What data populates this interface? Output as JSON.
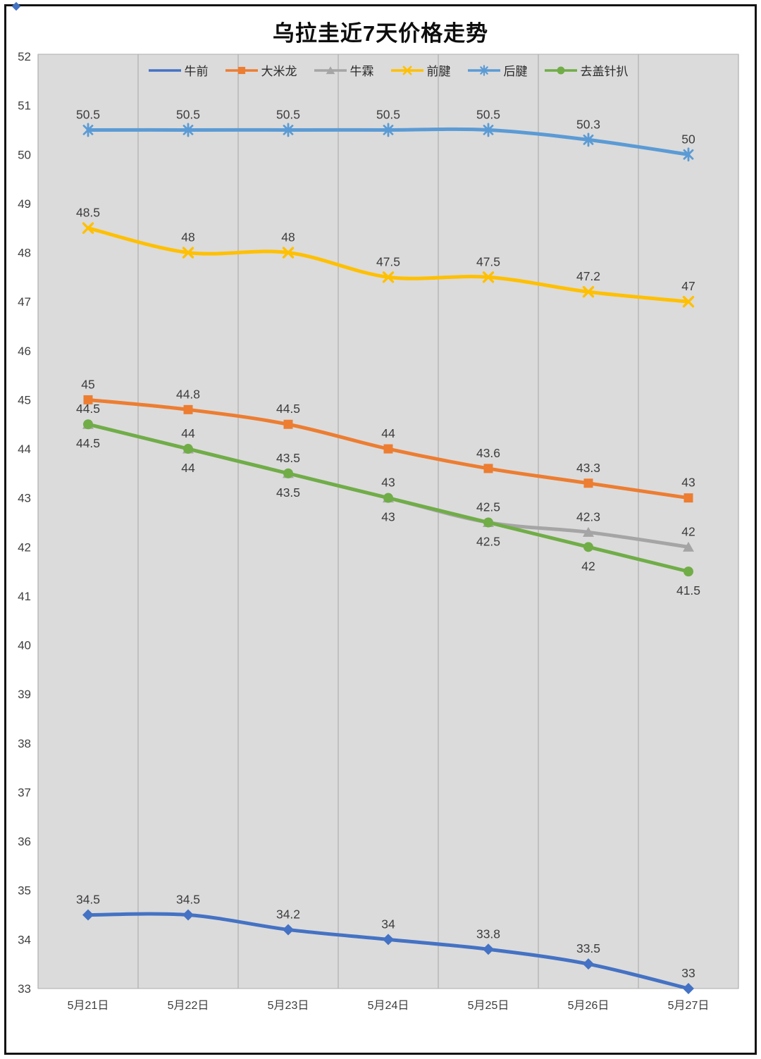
{
  "title": "乌拉圭近7天价格走势",
  "chart_data": {
    "type": "line",
    "title": "乌拉圭近7天价格走势",
    "categories": [
      "5月21日",
      "5月22日",
      "5月23日",
      "5月24日",
      "5月25日",
      "5月26日",
      "5月27日"
    ],
    "series": [
      {
        "id": "niu-qian",
        "name": "牛前",
        "color": "#4472C4",
        "marker": "diamond",
        "label_side": "above",
        "values": [
          34.5,
          34.5,
          34.2,
          34,
          33.8,
          33.5,
          33
        ]
      },
      {
        "id": "da-mi-long",
        "name": "大米龙",
        "color": "#ED7D31",
        "marker": "square",
        "label_side": "above",
        "values": [
          45,
          44.8,
          44.5,
          44,
          43.6,
          43.3,
          43
        ]
      },
      {
        "id": "niu-lin",
        "name": "牛霖",
        "color": "#A5A5A5",
        "marker": "triangle",
        "label_side": "above",
        "values": [
          44.5,
          44,
          43.5,
          43,
          42.5,
          42.3,
          42
        ]
      },
      {
        "id": "qian-jian",
        "name": "前腱",
        "color": "#FFC000",
        "marker": "x",
        "label_side": "above",
        "values": [
          48.5,
          48,
          48,
          47.5,
          47.5,
          47.2,
          47
        ]
      },
      {
        "id": "hou-jian",
        "name": "后腱",
        "color": "#5B9BD5",
        "marker": "asterisk",
        "label_side": "above",
        "values": [
          50.5,
          50.5,
          50.5,
          50.5,
          50.5,
          50.3,
          50
        ]
      },
      {
        "id": "qu-gai-zhen-ba",
        "name": "去盖针扒",
        "color": "#70AD47",
        "marker": "circle",
        "label_side": "below",
        "values": [
          44.5,
          44,
          43.5,
          43,
          42.5,
          42,
          41.5
        ]
      }
    ],
    "ylim": [
      33,
      52
    ],
    "y_tick_step": 1,
    "xlabel": "",
    "ylabel": "",
    "grid": "vertical",
    "legend_position": "top",
    "plot_bg_color": "#dbdbdb",
    "gridline_color": "#aeaeae",
    "smoothed_lines": true,
    "data_labels_shown": true
  }
}
